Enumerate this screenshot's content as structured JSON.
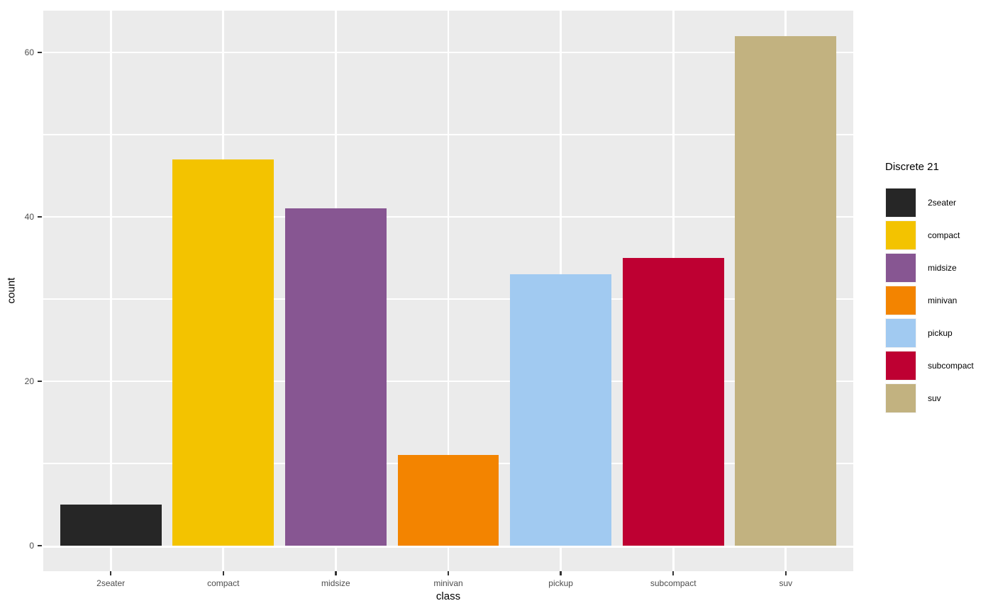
{
  "figure": {
    "background": "#FFFFFF",
    "panel_background": "#EBEBEB",
    "gridline_color": "#FFFFFF",
    "tick_mark_color": "#333333",
    "tick_label_color": "#4D4D4D",
    "axis_title_color": "#000000"
  },
  "legend": {
    "title": "Discrete 21",
    "position": "right",
    "key_background": "#F2F2F2",
    "items": [
      {
        "label": "2seater",
        "color": "#262626"
      },
      {
        "label": "compact",
        "color": "#F3C300"
      },
      {
        "label": "midsize",
        "color": "#875692"
      },
      {
        "label": "minivan",
        "color": "#F38400"
      },
      {
        "label": "pickup",
        "color": "#A1CAF1"
      },
      {
        "label": "subcompact",
        "color": "#BE0032"
      },
      {
        "label": "suv",
        "color": "#C2B280"
      }
    ]
  },
  "chart_data": {
    "type": "bar",
    "title": "",
    "xlabel": "class",
    "ylabel": "count",
    "categories": [
      "2seater",
      "compact",
      "midsize",
      "minivan",
      "pickup",
      "subcompact",
      "suv"
    ],
    "values": [
      5,
      47,
      41,
      11,
      33,
      35,
      62
    ],
    "series_colors": [
      "#262626",
      "#F3C300",
      "#875692",
      "#F38400",
      "#A1CAF1",
      "#BE0032",
      "#C2B280"
    ],
    "ylim": [
      0,
      65
    ],
    "yticks": [
      0,
      20,
      40,
      60
    ],
    "yticks_minor": [
      10,
      30,
      50
    ],
    "ytick_labels": [
      "0",
      "20",
      "40",
      "60"
    ],
    "legend_title": "Discrete 21",
    "legend_position": "right",
    "grid": "white-major-and-minor-on-gray-panel",
    "bar_relative_width": 0.9
  }
}
